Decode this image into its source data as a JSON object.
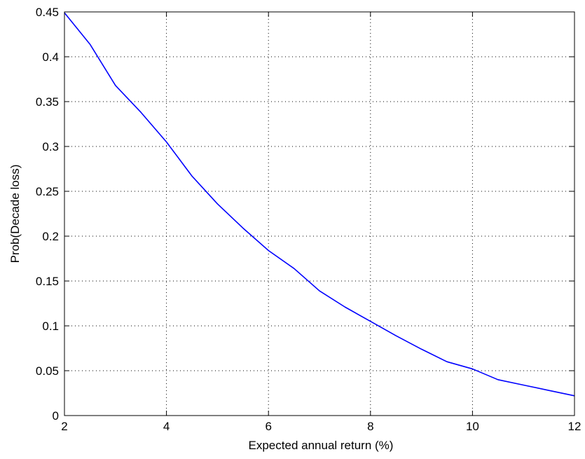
{
  "chart_data": {
    "type": "line",
    "title": "",
    "xlabel": "Expected annual return (%)",
    "ylabel": "Prob(Decade loss)",
    "xlim": [
      2,
      12
    ],
    "ylim": [
      0,
      0.45
    ],
    "xticks": [
      2,
      4,
      6,
      8,
      10,
      12
    ],
    "xtick_labels": [
      "2",
      "4",
      "6",
      "8",
      "10",
      "12"
    ],
    "yticks": [
      0,
      0.05,
      0.1,
      0.15,
      0.2,
      0.25,
      0.3,
      0.35,
      0.4,
      0.45
    ],
    "ytick_labels": [
      "0",
      "0.05",
      "0.1",
      "0.15",
      "0.2",
      "0.25",
      "0.3",
      "0.35",
      "0.4",
      "0.45"
    ],
    "grid": true,
    "legend": "none",
    "series": [
      {
        "color": "#0000ff",
        "x": [
          2,
          2.5,
          3,
          3.5,
          4,
          4.5,
          5,
          5.5,
          6,
          6.5,
          7,
          7.5,
          8,
          8.5,
          9,
          9.5,
          10,
          10.5,
          11,
          11.5,
          12
        ],
        "y": [
          0.449,
          0.414,
          0.368,
          0.338,
          0.305,
          0.267,
          0.236,
          0.209,
          0.184,
          0.164,
          0.139,
          0.121,
          0.105,
          0.089,
          0.074,
          0.06,
          0.052,
          0.04,
          0.034,
          0.028,
          0.022
        ]
      }
    ]
  }
}
